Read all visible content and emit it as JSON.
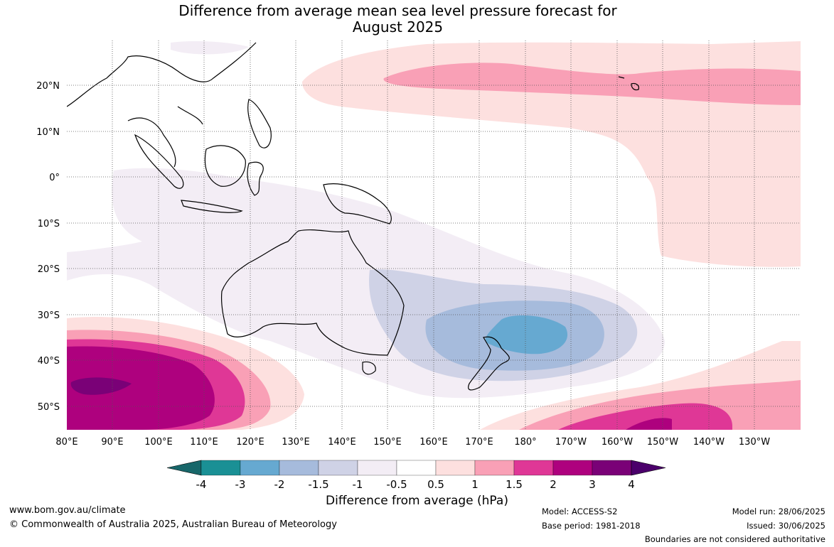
{
  "title_line1": "Difference from average mean sea level pressure forecast for",
  "title_line2": "August 2025",
  "lat_labels": [
    "20°N",
    "10°N",
    "0°",
    "10°S",
    "20°S",
    "30°S",
    "40°S",
    "50°S"
  ],
  "lon_labels": [
    "80°E",
    "90°E",
    "100°E",
    "110°E",
    "120°E",
    "130°E",
    "140°E",
    "150°E",
    "160°E",
    "170°E",
    "180°",
    "170°W",
    "160°W",
    "150°W",
    "140°W",
    "130°W"
  ],
  "colorbar": {
    "label": "Difference from average (hPa)",
    "ticks": [
      "-4",
      "-3",
      "-2",
      "-1.5",
      "-1",
      "-0.5",
      "0.5",
      "1",
      "1.5",
      "2",
      "3",
      "4"
    ],
    "colors": [
      "#18676a",
      "#1a9095",
      "#66a9d1",
      "#a6bbdc",
      "#cfd2e6",
      "#f3edf5",
      "#ffffff",
      "#fde0df",
      "#f9a0b6",
      "#df3796",
      "#ae017e",
      "#7a0177",
      "#4b006b"
    ]
  },
  "footer": {
    "website": "www.bom.gov.au/climate",
    "copyright": "© Commonwealth of Australia 2025, Australian Bureau of Meteorology",
    "model": "Model: ACCESS-S2",
    "base_period": "Base period: 1981-2018",
    "model_run": "Model run: 28/06/2025",
    "issued": "Issued: 30/06/2025",
    "disclaimer": "Boundaries are not considered authoritative"
  }
}
